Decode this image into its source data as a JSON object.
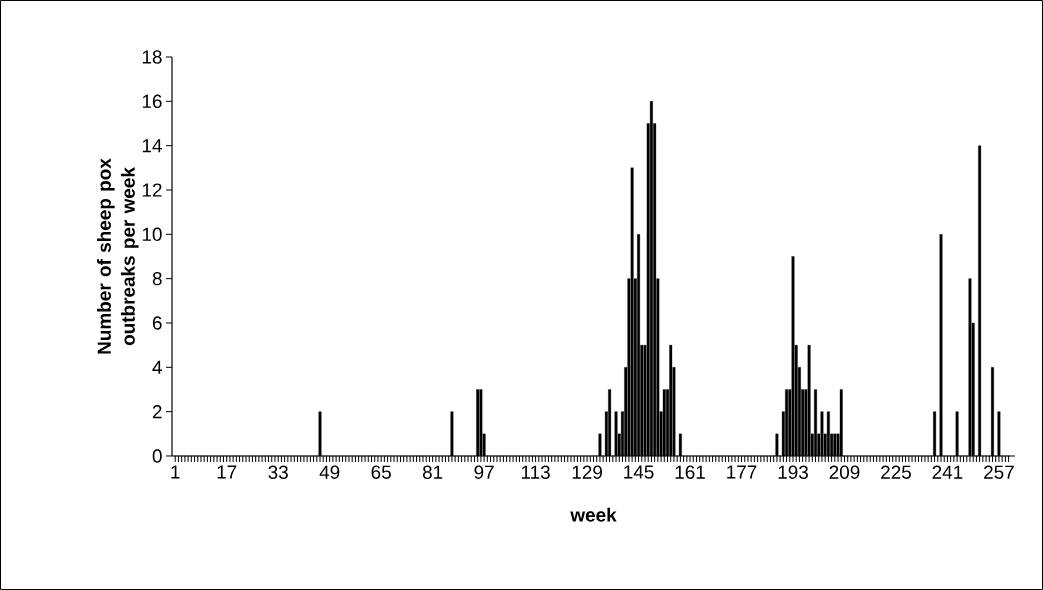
{
  "chart_data": {
    "type": "bar",
    "xlabel": "week",
    "ylabel": "Number of sheep pox outbreaks per week",
    "color": "#000000",
    "categories": [
      "1",
      null,
      null,
      null,
      null,
      null,
      null,
      null,
      null,
      null,
      null,
      null,
      null,
      null,
      null,
      null,
      "17",
      null,
      null,
      null,
      null,
      null,
      null,
      null,
      null,
      null,
      null,
      null,
      null,
      null,
      null,
      null,
      "33",
      null,
      null,
      null,
      null,
      null,
      null,
      null,
      null,
      null,
      null,
      null,
      null,
      null,
      null,
      null,
      "49",
      null,
      null,
      null,
      null,
      null,
      null,
      null,
      null,
      null,
      null,
      null,
      null,
      null,
      null,
      null,
      "65",
      null,
      null,
      null,
      null,
      null,
      null,
      null,
      null,
      null,
      null,
      null,
      null,
      null,
      null,
      null,
      "81",
      null,
      null,
      null,
      null,
      null,
      null,
      null,
      null,
      null,
      null,
      null,
      null,
      null,
      null,
      null,
      "97",
      null,
      null,
      null,
      null,
      null,
      null,
      null,
      null,
      null,
      null,
      null,
      null,
      null,
      null,
      null,
      "113",
      null,
      null,
      null,
      null,
      null,
      null,
      null,
      null,
      null,
      null,
      null,
      null,
      null,
      null,
      null,
      "129",
      null,
      null,
      null,
      null,
      null,
      null,
      null,
      null,
      null,
      null,
      null,
      null,
      null,
      null,
      null,
      "145",
      null,
      null,
      null,
      null,
      null,
      null,
      null,
      null,
      null,
      null,
      null,
      null,
      null,
      null,
      null,
      "161",
      null,
      null,
      null,
      null,
      null,
      null,
      null,
      null,
      null,
      null,
      null,
      null,
      null,
      null,
      null,
      "177",
      null,
      null,
      null,
      null,
      null,
      null,
      null,
      null,
      null,
      null,
      null,
      null,
      null,
      null,
      null,
      "193",
      null,
      null,
      null,
      null,
      null,
      null,
      null,
      null,
      null,
      null,
      null,
      null,
      null,
      null,
      null,
      "209",
      null,
      null,
      null,
      null,
      null,
      null,
      null,
      null,
      null,
      null,
      null,
      null,
      null,
      null,
      null,
      "225",
      null,
      null,
      null,
      null,
      null,
      null,
      null,
      null,
      null,
      null,
      null,
      null,
      null,
      null,
      null,
      "241",
      null,
      null,
      null,
      null,
      null,
      null,
      null,
      null,
      null,
      null,
      null,
      null,
      null,
      null,
      null,
      "257",
      null,
      null,
      null
    ],
    "values": [
      0,
      0,
      0,
      0,
      0,
      0,
      0,
      0,
      0,
      0,
      0,
      0,
      0,
      0,
      0,
      0,
      0,
      0,
      0,
      0,
      0,
      0,
      0,
      0,
      0,
      0,
      0,
      0,
      0,
      0,
      0,
      0,
      0,
      0,
      0,
      0,
      0,
      0,
      0,
      0,
      0,
      0,
      0,
      0,
      0,
      2,
      0,
      0,
      0,
      0,
      0,
      0,
      0,
      0,
      0,
      0,
      0,
      0,
      0,
      0,
      0,
      0,
      0,
      0,
      0,
      0,
      0,
      0,
      0,
      0,
      0,
      0,
      0,
      0,
      0,
      0,
      0,
      0,
      0,
      0,
      0,
      0,
      0,
      0,
      0,
      0,
      2,
      0,
      0,
      0,
      0,
      0,
      0,
      0,
      3,
      3,
      1,
      0,
      0,
      0,
      0,
      0,
      0,
      0,
      0,
      0,
      0,
      0,
      0,
      0,
      0,
      0,
      0,
      0,
      0,
      0,
      0,
      0,
      0,
      0,
      0,
      0,
      0,
      0,
      0,
      0,
      0,
      0,
      0,
      0,
      0,
      0,
      1,
      0,
      2,
      3,
      0,
      2,
      1,
      2,
      4,
      8,
      13,
      8,
      10,
      5,
      5,
      15,
      16,
      15,
      8,
      2,
      3,
      3,
      5,
      4,
      0,
      1,
      0,
      0,
      0,
      0,
      0,
      0,
      0,
      0,
      0,
      0,
      0,
      0,
      0,
      0,
      0,
      0,
      0,
      0,
      0,
      0,
      0,
      0,
      0,
      0,
      0,
      0,
      0,
      0,
      0,
      1,
      0,
      2,
      3,
      3,
      9,
      5,
      4,
      3,
      3,
      5,
      1,
      3,
      1,
      2,
      1,
      2,
      1,
      1,
      1,
      3,
      0,
      0,
      0,
      0,
      0,
      0,
      0,
      0,
      0,
      0,
      0,
      0,
      0,
      0,
      0,
      0,
      0,
      0,
      0,
      0,
      0,
      0,
      0,
      0,
      0,
      0,
      0,
      0,
      2,
      0,
      10,
      0,
      0,
      0,
      0,
      2,
      0,
      0,
      0,
      8,
      6,
      0,
      14,
      0,
      0,
      0,
      4,
      0,
      2,
      0,
      0,
      0
    ],
    "ylim": [
      0,
      18
    ],
    "yticks": [
      0,
      2,
      4,
      6,
      8,
      10,
      12,
      14,
      16,
      18
    ]
  }
}
